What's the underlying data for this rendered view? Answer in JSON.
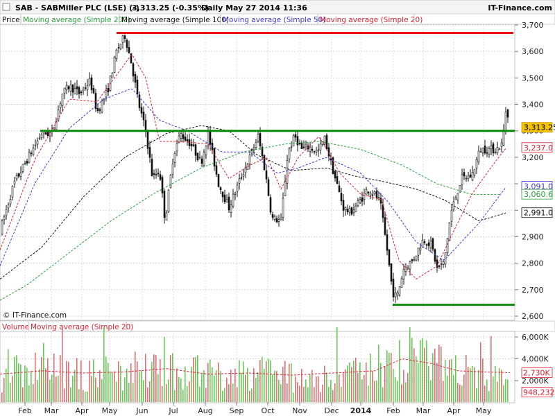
{
  "header": {
    "symbol": "SAB - SABMiller PLC (LSE) (-)",
    "price_change": "3,313.25 (-0.35%)",
    "period_date": "Daily  May 27 2014 11:36",
    "brand": "IT-Finance.com"
  },
  "legend": {
    "price": "Price",
    "ma200": "Moving average (Simple 200)",
    "ma100": "Moving average (Simple 100)",
    "ma50": "Moving average (Simple 50)",
    "ma20": "Moving average (Simple 20)",
    "volume": "Volume",
    "vol_ma20": "Moving average (Simple 20)"
  },
  "watermark": "© IT-Finance.com",
  "colors": {
    "ma200": "#2a9d3a",
    "ma100": "#111111",
    "ma50": "#3a3ad8",
    "ma20": "#e02030",
    "support_line": "#0a8a0a",
    "resistance_line": "#ee1111",
    "volume_bar": "#66cc55",
    "volume_bar_down": "#e07070",
    "price_tag_bg": "#f5c400"
  },
  "chart_data": [
    {
      "type": "candlestick",
      "title": "SAB - SABMiller PLC (LSE) (-)",
      "x_tick_labels": [
        "Feb",
        "Mar",
        "Apr",
        "May",
        "Jun",
        "Jul",
        "Aug",
        "Sep",
        "Oct",
        "Nov",
        "Dec",
        "2014",
        "Feb",
        "Mar",
        "Apr",
        "May"
      ],
      "y_tick_labels": [
        "3,700",
        "3,600",
        "3,500",
        "3,400",
        "3,300",
        "3,200",
        "3,100",
        "3,000",
        "2,900",
        "2,800",
        "2,700",
        "2,600"
      ],
      "y_ticks": [
        3700,
        3600,
        3500,
        3400,
        3300,
        3200,
        3100,
        3000,
        2900,
        2800,
        2700,
        2600
      ],
      "ylim": [
        2590,
        3720
      ],
      "close_points": [
        [
          0,
          2920
        ],
        [
          20,
          3100
        ],
        [
          45,
          3220
        ],
        [
          60,
          3290
        ],
        [
          75,
          3290
        ],
        [
          90,
          3440
        ],
        [
          100,
          3470
        ],
        [
          115,
          3440
        ],
        [
          130,
          3490
        ],
        [
          140,
          3370
        ],
        [
          155,
          3450
        ],
        [
          168,
          3600
        ],
        [
          180,
          3660
        ],
        [
          190,
          3550
        ],
        [
          200,
          3400
        ],
        [
          210,
          3300
        ],
        [
          220,
          3120
        ],
        [
          230,
          3150
        ],
        [
          238,
          2960
        ],
        [
          250,
          3210
        ],
        [
          260,
          3290
        ],
        [
          275,
          3250
        ],
        [
          290,
          3180
        ],
        [
          300,
          3290
        ],
        [
          315,
          3100
        ],
        [
          330,
          3010
        ],
        [
          345,
          3110
        ],
        [
          360,
          3200
        ],
        [
          372,
          3280
        ],
        [
          382,
          3150
        ],
        [
          392,
          2970
        ],
        [
          405,
          2960
        ],
        [
          415,
          3220
        ],
        [
          425,
          3280
        ],
        [
          435,
          3230
        ],
        [
          445,
          3240
        ],
        [
          458,
          3220
        ],
        [
          468,
          3270
        ],
        [
          480,
          3150
        ],
        [
          495,
          3010
        ],
        [
          505,
          2990
        ],
        [
          520,
          3040
        ],
        [
          530,
          3080
        ],
        [
          540,
          3060
        ],
        [
          548,
          3030
        ],
        [
          558,
          2850
        ],
        [
          566,
          2690
        ],
        [
          572,
          2670
        ],
        [
          582,
          2780
        ],
        [
          595,
          2810
        ],
        [
          610,
          2890
        ],
        [
          622,
          2870
        ],
        [
          630,
          2780
        ],
        [
          640,
          2800
        ],
        [
          650,
          2990
        ],
        [
          665,
          3120
        ],
        [
          680,
          3130
        ],
        [
          692,
          3230
        ],
        [
          702,
          3230
        ],
        [
          715,
          3230
        ],
        [
          724,
          3250
        ],
        [
          730,
          3400
        ],
        [
          735,
          3313
        ]
      ],
      "series": [
        {
          "name": "Moving average (Simple 200)",
          "points": [
            [
              0,
              2660
            ],
            [
              40,
              2720
            ],
            [
              100,
              2840
            ],
            [
              160,
              2960
            ],
            [
              220,
              3060
            ],
            [
              290,
              3160
            ],
            [
              350,
              3220
            ],
            [
              410,
              3250
            ],
            [
              460,
              3260
            ],
            [
              520,
              3230
            ],
            [
              580,
              3170
            ],
            [
              630,
              3100
            ],
            [
              680,
              3060
            ],
            [
              720,
              3060
            ]
          ]
        },
        {
          "name": "Moving average (Simple 100)",
          "points": [
            [
              0,
              2740
            ],
            [
              60,
              2860
            ],
            [
              120,
              3050
            ],
            [
              180,
              3200
            ],
            [
              240,
              3290
            ],
            [
              290,
              3320
            ],
            [
              330,
              3300
            ],
            [
              370,
              3210
            ],
            [
              420,
              3150
            ],
            [
              470,
              3160
            ],
            [
              510,
              3130
            ],
            [
              550,
              3110
            ],
            [
              600,
              3080
            ],
            [
              640,
              3040
            ],
            [
              690,
              2960
            ],
            [
              730,
              2990
            ]
          ]
        },
        {
          "name": "Moving average (Simple 50)",
          "points": [
            [
              0,
              2790
            ],
            [
              50,
              3100
            ],
            [
              100,
              3310
            ],
            [
              150,
              3420
            ],
            [
              190,
              3460
            ],
            [
              230,
              3340
            ],
            [
              270,
              3300
            ],
            [
              320,
              3220
            ],
            [
              360,
              3220
            ],
            [
              400,
              3140
            ],
            [
              430,
              3160
            ],
            [
              470,
              3200
            ],
            [
              520,
              3140
            ],
            [
              560,
              3030
            ],
            [
              600,
              2880
            ],
            [
              640,
              2810
            ],
            [
              690,
              2950
            ],
            [
              730,
              3090
            ]
          ]
        },
        {
          "name": "Moving average (Simple 20)",
          "points": [
            [
              0,
              2850
            ],
            [
              50,
              3190
            ],
            [
              100,
              3420
            ],
            [
              140,
              3410
            ],
            [
              190,
              3590
            ],
            [
              210,
              3500
            ],
            [
              230,
              3260
            ],
            [
              260,
              3260
            ],
            [
              300,
              3250
            ],
            [
              330,
              3120
            ],
            [
              360,
              3170
            ],
            [
              385,
              3200
            ],
            [
              405,
              3080
            ],
            [
              430,
              3200
            ],
            [
              460,
              3280
            ],
            [
              490,
              3140
            ],
            [
              520,
              3060
            ],
            [
              550,
              3040
            ],
            [
              575,
              2810
            ],
            [
              600,
              2740
            ],
            [
              630,
              2790
            ],
            [
              650,
              2900
            ],
            [
              680,
              3060
            ],
            [
              710,
              3170
            ],
            [
              730,
              3237
            ]
          ]
        }
      ],
      "horizontal_lines": [
        {
          "level": 3670,
          "x_from": 168,
          "x_to": 740,
          "color": "#ee1111"
        },
        {
          "level": 3300,
          "x_from": 58,
          "x_to": 742,
          "color": "#0a8a0a"
        },
        {
          "level": 2643,
          "x_from": 566,
          "x_to": 742,
          "color": "#0a8a0a"
        }
      ],
      "value_tags": [
        {
          "label": "3,313.25",
          "value": 3313.25,
          "style": "price"
        },
        {
          "label": "3,237.0",
          "value": 3237,
          "style": "ma20"
        },
        {
          "label": "3,091.0",
          "value": 3091,
          "style": "ma50"
        },
        {
          "label": "3,060.6",
          "value": 3060.6,
          "style": "ma200"
        },
        {
          "label": "2,991.0",
          "value": 2991,
          "style": "ma100"
        }
      ]
    },
    {
      "type": "bar",
      "title": "Volume",
      "y_tick_labels": [
        "6,000K",
        "4,000K",
        "2,000K"
      ],
      "y_ticks": [
        6000,
        4000,
        2000
      ],
      "ylim": [
        0,
        7000
      ],
      "volume_ma_points": [
        [
          0,
          2600
        ],
        [
          60,
          2900
        ],
        [
          120,
          2700
        ],
        [
          180,
          2800
        ],
        [
          240,
          3100
        ],
        [
          300,
          2600
        ],
        [
          360,
          2700
        ],
        [
          420,
          2500
        ],
        [
          480,
          2700
        ],
        [
          540,
          2900
        ],
        [
          580,
          4000
        ],
        [
          620,
          3600
        ],
        [
          660,
          2900
        ],
        [
          700,
          2800
        ],
        [
          735,
          2730
        ]
      ],
      "value_tags": [
        {
          "label": "2,730K",
          "value": 2730,
          "style": "ma20"
        },
        {
          "label": "948,232",
          "value": 948.232,
          "style": "ma20"
        }
      ]
    }
  ]
}
